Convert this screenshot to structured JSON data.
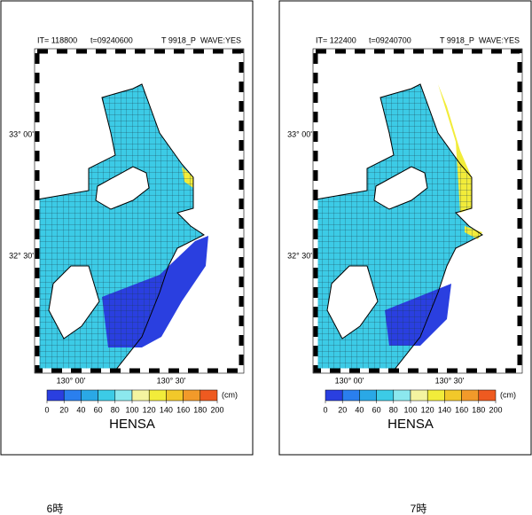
{
  "panels": [
    {
      "iteration": "IT= 118800",
      "time": "t=09240600",
      "case": "T 9918_P",
      "wave": "WAVE:YES",
      "caption": "6時"
    },
    {
      "iteration": "IT= 122400",
      "time": "t=09240700",
      "case": "T 9918_P",
      "wave": "WAVE:YES",
      "caption": "7時"
    }
  ],
  "lat_labels": [
    "33° 00'",
    "32° 30'"
  ],
  "lon_labels": [
    "130° 00'",
    "130° 30'"
  ],
  "colorbar": {
    "title": "HENSA",
    "unit": "(cm)",
    "ticks": [
      0,
      20,
      40,
      60,
      80,
      100,
      120,
      140,
      160,
      180,
      200
    ],
    "colors": [
      "#2a3fe0",
      "#2a7fee",
      "#2aa8e6",
      "#3ccbe6",
      "#8ce8ee",
      "#f4f4a0",
      "#f2ec3a",
      "#f2c82a",
      "#f29a2a",
      "#ee5a20"
    ]
  }
}
